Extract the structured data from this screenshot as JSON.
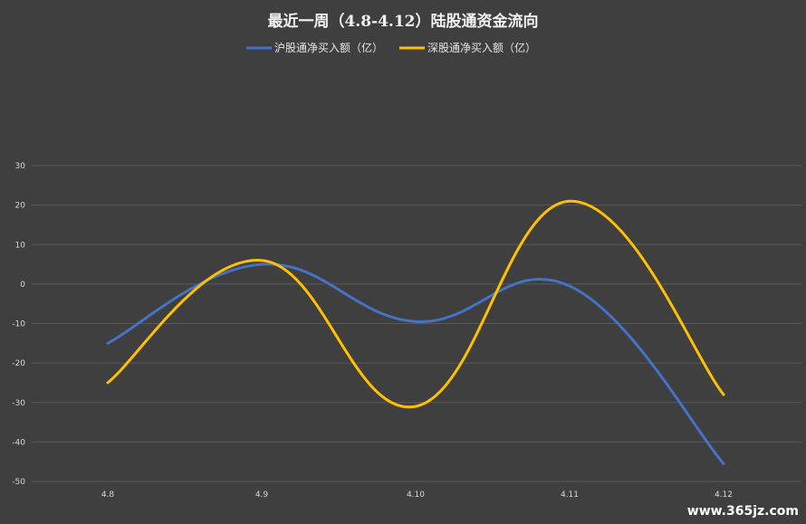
{
  "chart_data": {
    "type": "line",
    "title": "最近一周（4.8-4.12）陆股通资金流向",
    "categories": [
      "4.8",
      "4.9",
      "4.10",
      "4.11",
      "4.12"
    ],
    "series": [
      {
        "name": "沪股通净买入额（亿）",
        "values": [
          -15,
          5,
          -9.5,
          -0.5,
          -45.5
        ],
        "color": "#4472c4"
      },
      {
        "name": "深股通净买入额（亿）",
        "values": [
          -25,
          6,
          -31,
          21,
          -28
        ],
        "color": "#ffc000"
      }
    ],
    "yticks": [
      30,
      20,
      10,
      0,
      -10,
      -20,
      -30,
      -40,
      -50
    ],
    "ylim": [
      -50,
      30
    ],
    "grid": true,
    "legend": "top-center",
    "smooth": true
  },
  "watermark": {
    "text": "www.365jz.com"
  }
}
